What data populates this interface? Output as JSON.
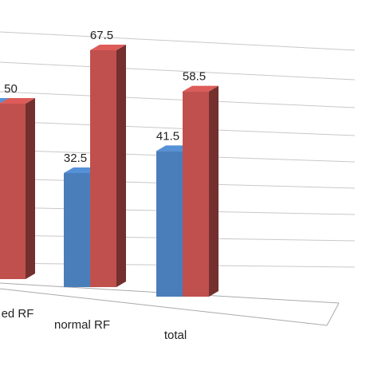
{
  "chart_data": {
    "type": "bar3d",
    "categories": [
      "ed RF",
      "normal RF",
      "total"
    ],
    "series": [
      {
        "color": "#4a7ebb",
        "values": [
          50,
          32.5,
          41.5
        ]
      },
      {
        "color": "#c0504d",
        "values": [
          50,
          67.5,
          58.5
        ]
      }
    ],
    "value_labels_visible": [
      [
        false,
        true,
        true
      ],
      [
        true,
        true,
        true
      ]
    ],
    "ylim": [
      0,
      80
    ]
  }
}
